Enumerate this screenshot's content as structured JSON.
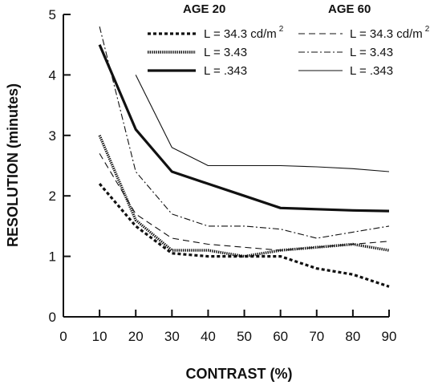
{
  "chart_data": {
    "type": "line",
    "xlabel": "CONTRAST (%)",
    "ylabel": "RESOLUTION (minutes)",
    "xlim": [
      0,
      90
    ],
    "ylim": [
      0,
      5
    ],
    "xticks": [
      0,
      10,
      20,
      30,
      40,
      50,
      60,
      70,
      80,
      90
    ],
    "yticks": [
      0,
      1,
      2,
      3,
      4,
      5
    ],
    "grid": false,
    "legend_position": "top-right",
    "legend_groups": [
      {
        "title": "AGE 20"
      },
      {
        "title": "AGE 60"
      }
    ],
    "luminance_units": {
      "base": "cd/m",
      "exponent": "2"
    },
    "series": [
      {
        "name": "L = 34.3",
        "group": "AGE 20",
        "style": "heavy-dashed",
        "x": [
          10,
          20,
          30,
          40,
          50,
          60,
          70,
          80,
          90
        ],
        "values": [
          2.2,
          1.5,
          1.05,
          1.0,
          1.0,
          1.0,
          0.8,
          0.7,
          0.5
        ]
      },
      {
        "name": "L = 3.43",
        "group": "AGE 20",
        "style": "heavy-dotted",
        "x": [
          10,
          20,
          30,
          40,
          50,
          60,
          70,
          80,
          90
        ],
        "values": [
          3.0,
          1.6,
          1.1,
          1.1,
          1.0,
          1.1,
          1.15,
          1.2,
          1.1
        ]
      },
      {
        "name": "L = .343",
        "group": "AGE 20",
        "style": "heavy-solid",
        "x": [
          10,
          20,
          30,
          40,
          50,
          60,
          70,
          80,
          90
        ],
        "values": [
          4.5,
          3.1,
          2.4,
          2.2,
          2.0,
          1.8,
          1.78,
          1.76,
          1.75
        ]
      },
      {
        "name": "L = 34.3",
        "group": "AGE 60",
        "style": "thin-dashed",
        "x": [
          10,
          20,
          30,
          40,
          50,
          60,
          70,
          80,
          90
        ],
        "values": [
          2.7,
          1.7,
          1.3,
          1.2,
          1.15,
          1.1,
          1.15,
          1.2,
          1.25
        ]
      },
      {
        "name": "L = 3.43",
        "group": "AGE 60",
        "style": "thin-dashdot",
        "x": [
          10,
          20,
          30,
          40,
          50,
          60,
          70,
          80,
          90
        ],
        "values": [
          4.8,
          2.4,
          1.7,
          1.5,
          1.5,
          1.45,
          1.3,
          1.4,
          1.5
        ]
      },
      {
        "name": "L = .343",
        "group": "AGE 60",
        "style": "thin-solid",
        "x": [
          20,
          30,
          40,
          50,
          60,
          70,
          80,
          90
        ],
        "values": [
          4.0,
          2.8,
          2.5,
          2.5,
          2.5,
          2.48,
          2.45,
          2.4
        ]
      }
    ]
  }
}
